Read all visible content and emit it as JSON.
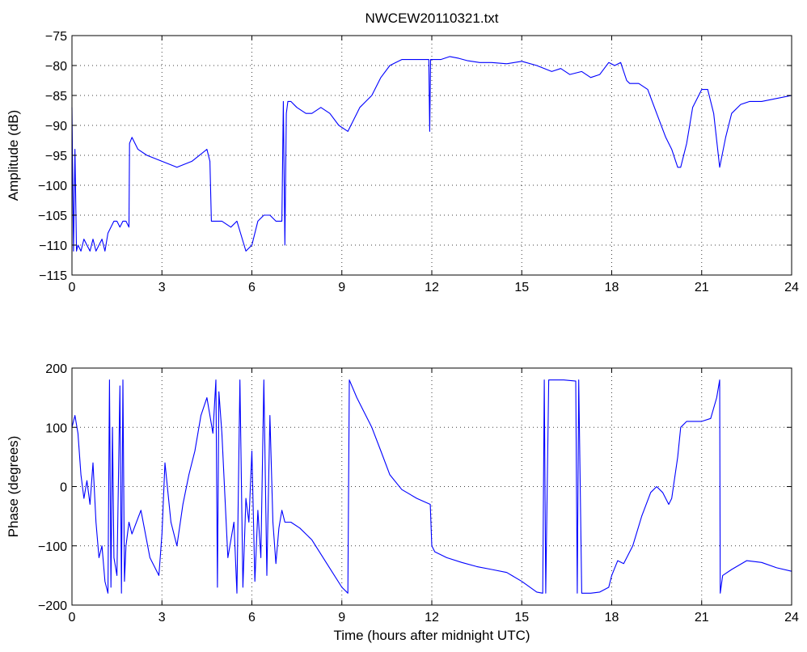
{
  "title": "NWCEW20110321.txt",
  "chart_data": [
    {
      "type": "line",
      "ylabel": "Amplitude (dB)",
      "xlabel": "",
      "xlim": [
        0,
        24
      ],
      "ylim": [
        -115,
        -75
      ],
      "xticks": [
        0,
        3,
        6,
        9,
        12,
        15,
        18,
        21,
        24
      ],
      "yticks": [
        -115,
        -110,
        -105,
        -100,
        -95,
        -90,
        -85,
        -80,
        -75
      ],
      "xtick_labels": [
        "0",
        "3",
        "6",
        "9",
        "12",
        "15",
        "18",
        "21",
        "24"
      ],
      "ytick_labels": [
        "−115",
        "−110",
        "−105",
        "−100",
        "−95",
        "−90",
        "−85",
        "−80",
        "−75"
      ],
      "grid": true,
      "color": "#0000ff",
      "series": [
        {
          "x": [
            0,
            0.05,
            0.1,
            0.15,
            0.2,
            0.3,
            0.4,
            0.5,
            0.6,
            0.7,
            0.8,
            0.9,
            1.0,
            1.1,
            1.2,
            1.3,
            1.4,
            1.5,
            1.6,
            1.7,
            1.8,
            1.9,
            1.92,
            2.0,
            2.2,
            2.5,
            3.0,
            3.5,
            4.0,
            4.5,
            4.6,
            4.65,
            5.0,
            5.3,
            5.5,
            5.8,
            6.0,
            6.2,
            6.4,
            6.6,
            6.8,
            7.0,
            7.05,
            7.1,
            7.15,
            7.2,
            7.3,
            7.5,
            7.8,
            8.0,
            8.3,
            8.6,
            8.9,
            9.2,
            9.4,
            9.5,
            9.6,
            9.8,
            10.0,
            10.3,
            10.6,
            10.8,
            11.0,
            11.3,
            11.6,
            11.9,
            11.93,
            11.96,
            12.0,
            12.3,
            12.6,
            12.9,
            13.2,
            13.6,
            14.0,
            14.5,
            15.0,
            15.5,
            16.0,
            16.3,
            16.6,
            17.0,
            17.3,
            17.6,
            17.9,
            18.1,
            18.3,
            18.5,
            18.6,
            18.9,
            19.2,
            19.5,
            19.8,
            20.0,
            20.2,
            20.3,
            20.5,
            20.7,
            21.0,
            21.2,
            21.4,
            21.6,
            21.8,
            22.0,
            22.3,
            22.6,
            23.0,
            23.5,
            24.0
          ],
          "values": [
            -87,
            -111,
            -94,
            -111,
            -110,
            -111,
            -109,
            -110,
            -111,
            -109,
            -111,
            -110,
            -109,
            -111,
            -108,
            -107,
            -106,
            -106,
            -107,
            -106,
            -106,
            -107,
            -93,
            -92,
            -94,
            -95,
            -96,
            -97,
            -96,
            -94,
            -96,
            -106,
            -106,
            -107,
            -106,
            -111,
            -110,
            -106,
            -105,
            -105,
            -106,
            -106,
            -86,
            -110,
            -88,
            -86,
            -86,
            -87,
            -88,
            -88,
            -87,
            -88,
            -90,
            -91,
            -89,
            -88,
            -87,
            -86,
            -85,
            -82,
            -80,
            -79.5,
            -79,
            -79,
            -79,
            -79,
            -91,
            -79,
            -79,
            -79,
            -78.5,
            -78.8,
            -79.2,
            -79.5,
            -79.5,
            -79.7,
            -79.3,
            -80,
            -81,
            -80.5,
            -81.5,
            -81,
            -82,
            -81.5,
            -79.5,
            -80,
            -79.5,
            -82.5,
            -83,
            -83,
            -84,
            -88,
            -92,
            -94,
            -97,
            -97,
            -93,
            -87,
            -84,
            -84,
            -88,
            -97,
            -92,
            -88,
            -86.5,
            -86,
            -86,
            -85.5,
            -85
          ]
        }
      ]
    },
    {
      "type": "line",
      "ylabel": "Phase (degrees)",
      "xlabel": "Time (hours after midnight UTC)",
      "xlim": [
        0,
        24
      ],
      "ylim": [
        -200,
        200
      ],
      "xticks": [
        0,
        3,
        6,
        9,
        12,
        15,
        18,
        21,
        24
      ],
      "yticks": [
        -200,
        -100,
        0,
        100,
        200
      ],
      "xtick_labels": [
        "0",
        "3",
        "6",
        "9",
        "12",
        "15",
        "18",
        "21",
        "24"
      ],
      "ytick_labels": [
        "−200",
        "−100",
        "0",
        "100",
        "200"
      ],
      "grid": true,
      "color": "#0000ff",
      "series": [
        {
          "x": [
            0,
            0.1,
            0.2,
            0.3,
            0.4,
            0.5,
            0.6,
            0.7,
            0.8,
            0.9,
            1.0,
            1.1,
            1.2,
            1.25,
            1.3,
            1.35,
            1.4,
            1.5,
            1.6,
            1.65,
            1.7,
            1.75,
            1.8,
            1.9,
            2.0,
            2.3,
            2.6,
            2.9,
            3.0,
            3.1,
            3.3,
            3.5,
            3.7,
            3.9,
            4.1,
            4.3,
            4.5,
            4.7,
            4.8,
            4.85,
            4.9,
            5.0,
            5.2,
            5.4,
            5.5,
            5.6,
            5.7,
            5.8,
            5.9,
            6.0,
            6.1,
            6.2,
            6.3,
            6.4,
            6.5,
            6.6,
            6.7,
            6.8,
            6.9,
            7.0,
            7.1,
            7.3,
            7.6,
            8.0,
            8.5,
            9.0,
            9.2,
            9.25,
            9.5,
            10.0,
            10.3,
            10.6,
            11.0,
            11.5,
            11.95,
            12.0,
            12.1,
            12.5,
            13.0,
            13.5,
            14.0,
            14.5,
            15.0,
            15.5,
            15.7,
            15.75,
            15.8,
            15.9,
            16.0,
            16.4,
            16.8,
            16.85,
            16.9,
            17.0,
            17.3,
            17.6,
            17.9,
            18.0,
            18.2,
            18.4,
            18.7,
            19.0,
            19.3,
            19.5,
            19.7,
            19.9,
            20.0,
            20.2,
            20.3,
            20.5,
            21.0,
            21.3,
            21.5,
            21.6,
            21.62,
            21.7,
            22.0,
            22.5,
            23.0,
            23.5,
            24.0
          ],
          "values": [
            100,
            120,
            90,
            20,
            -20,
            10,
            -30,
            40,
            -60,
            -120,
            -100,
            -160,
            -180,
            180,
            -170,
            100,
            -120,
            -150,
            170,
            -180,
            180,
            -160,
            -100,
            -60,
            -80,
            -40,
            -120,
            -150,
            -80,
            40,
            -60,
            -100,
            -30,
            20,
            60,
            120,
            150,
            90,
            180,
            -170,
            160,
            90,
            -120,
            -60,
            -180,
            180,
            -170,
            -20,
            -60,
            60,
            -160,
            -40,
            -120,
            180,
            -150,
            120,
            -60,
            -130,
            -70,
            -40,
            -60,
            -60,
            -70,
            -90,
            -130,
            -170,
            -180,
            180,
            150,
            100,
            60,
            20,
            -5,
            -20,
            -30,
            -100,
            -110,
            -120,
            -128,
            -135,
            -140,
            -145,
            -160,
            -178,
            -180,
            180,
            -180,
            180,
            180,
            180,
            178,
            -180,
            180,
            -180,
            -180,
            -178,
            -170,
            -150,
            -125,
            -130,
            -100,
            -50,
            -10,
            0,
            -10,
            -30,
            -20,
            50,
            100,
            110,
            110,
            115,
            150,
            180,
            -180,
            -150,
            -140,
            -125,
            -128,
            -137,
            -143
          ]
        }
      ]
    }
  ]
}
